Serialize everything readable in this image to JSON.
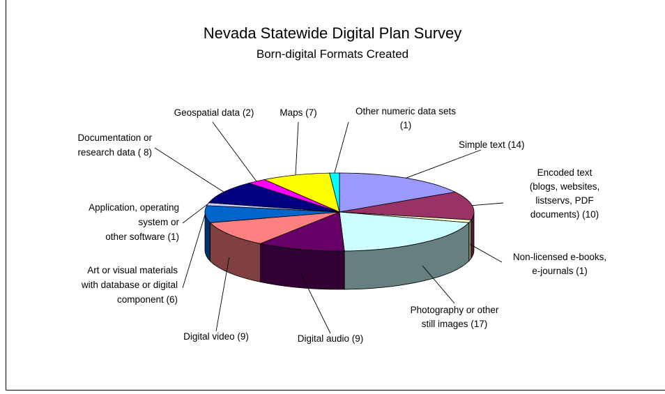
{
  "chart_data": {
    "type": "pie",
    "title": "Nevada Statewide Digital Plan Survey",
    "subtitle": "Born-digital Formats Created",
    "three_d": true,
    "legend": "none",
    "slices": [
      {
        "name": "Simple text",
        "value": 14,
        "color": "#9999ff",
        "label_lines": [
          "Simple text (14)"
        ]
      },
      {
        "name": "Encoded text (blogs, websites, listservs, PDF documents)",
        "value": 10,
        "color": "#993366",
        "label_lines": [
          "Encoded text",
          "(blogs, websites,",
          "listservs, PDF",
          "documents) (10)"
        ]
      },
      {
        "name": "Non-licensed e-books, e-journals",
        "value": 1,
        "color": "#ffffcc",
        "label_lines": [
          "Non-licensed e-books,",
          "e-journals (1)"
        ]
      },
      {
        "name": "Photography or other still images",
        "value": 17,
        "color": "#ccffff",
        "label_lines": [
          "Photography or other",
          "still images (17)"
        ]
      },
      {
        "name": "Digital audio",
        "value": 9,
        "color": "#660066",
        "label_lines": [
          "Digital audio (9)"
        ]
      },
      {
        "name": "Digital video",
        "value": 9,
        "color": "#ff8080",
        "label_lines": [
          "Digital video (9)"
        ]
      },
      {
        "name": "Art or visual materials with database or digital component",
        "value": 6,
        "color": "#0066cc",
        "label_lines": [
          "Art or visual materials",
          "with database or digital",
          "component (6)"
        ]
      },
      {
        "name": "Application, operating system or other software",
        "value": 1,
        "color": "#ccccff",
        "label_lines": [
          "Application, operating",
          "system or",
          "other software (1)"
        ]
      },
      {
        "name": "Documentation or research data",
        "value": 8,
        "color": "#000080",
        "label_lines": [
          "Documentation or",
          "research data ( 8)"
        ]
      },
      {
        "name": "Geospatial data",
        "value": 2,
        "color": "#ff00ff",
        "label_lines": [
          "Geospatial data (2)"
        ]
      },
      {
        "name": "Maps",
        "value": 7,
        "color": "#ffff00",
        "label_lines": [
          "Maps (7)"
        ]
      },
      {
        "name": "Other numeric data sets",
        "value": 1,
        "color": "#00ffff",
        "label_lines": [
          "Other numeric data sets",
          "(1)"
        ]
      }
    ]
  }
}
